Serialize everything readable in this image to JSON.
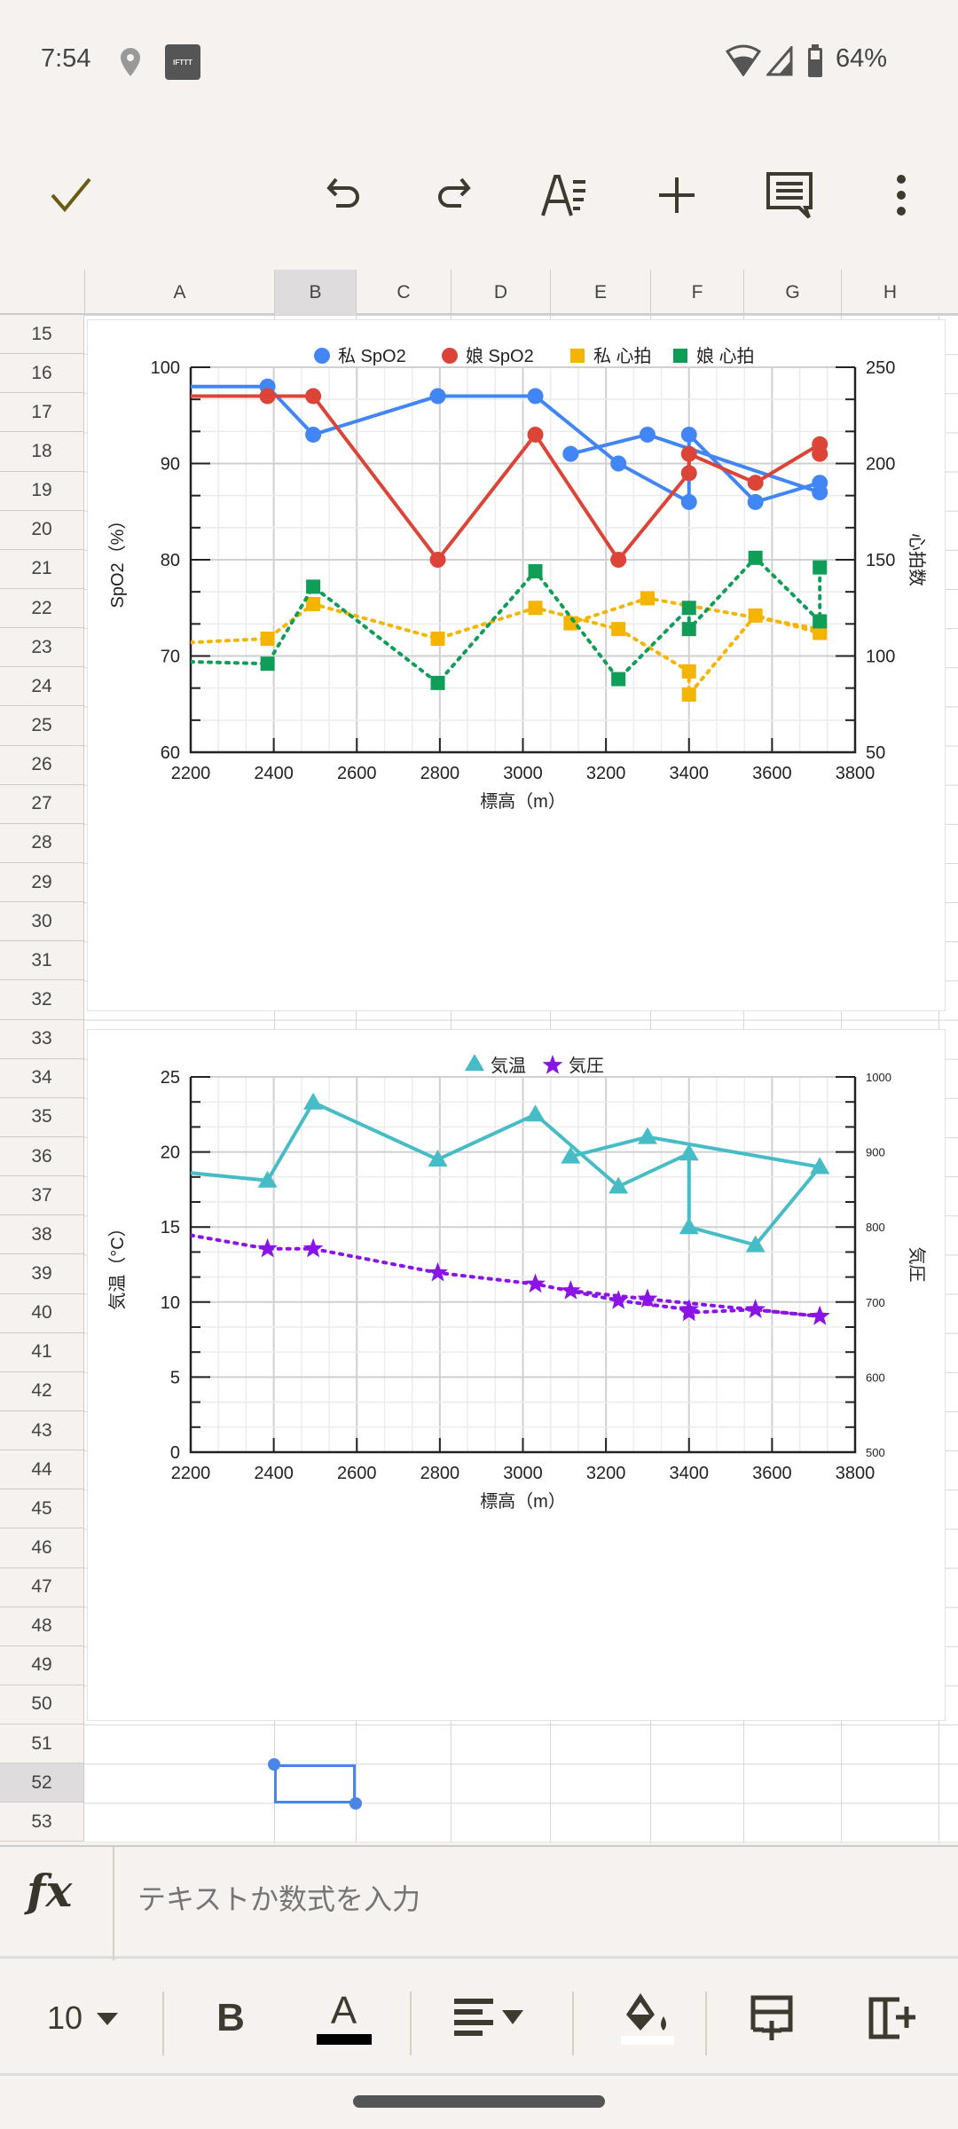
{
  "status": {
    "time": "7:54",
    "battery": "64%",
    "app_badge": "IFTTT"
  },
  "toolbar": {
    "icons": [
      "check-icon",
      "undo-icon",
      "redo-icon",
      "text-format-icon",
      "plus-icon",
      "comment-icon",
      "more-vert-icon"
    ]
  },
  "columns": [
    "A",
    "B",
    "C",
    "D",
    "E",
    "F",
    "G",
    "H"
  ],
  "selected_column": "B",
  "rows": [
    "15",
    "16",
    "17",
    "18",
    "19",
    "20",
    "21",
    "22",
    "23",
    "24",
    "25",
    "26",
    "27",
    "28",
    "29",
    "30",
    "31",
    "32",
    "33",
    "34",
    "35",
    "36",
    "37",
    "38",
    "39",
    "40",
    "41",
    "42",
    "43",
    "44",
    "45",
    "46",
    "47",
    "48",
    "49",
    "50",
    "51",
    "52",
    "53"
  ],
  "selected_row": "52",
  "formula_bar": {
    "placeholder": "テキストか数式を入力",
    "value": ""
  },
  "format_bar": {
    "font_size": "10",
    "bold": "B",
    "text_color": "A",
    "text_color_hex": "#000000",
    "fill_color_hex": "#ffffff"
  },
  "chart_data": [
    {
      "type": "line",
      "title": "",
      "xlabel": "標高（m）",
      "ylabel": "SpO2（%）",
      "y2label": "心拍数",
      "xlim": [
        2200,
        3800
      ],
      "ylim": [
        60,
        100
      ],
      "y2lim": [
        50,
        250
      ],
      "xticks": [
        "2200",
        "2400",
        "2600",
        "2800",
        "3000",
        "3200",
        "3400",
        "3600",
        "3800"
      ],
      "yticks": [
        "60",
        "70",
        "80",
        "90",
        "100"
      ],
      "y2ticks": [
        "50",
        "100",
        "150",
        "200",
        "250"
      ],
      "grid": true,
      "legend": "top",
      "x": [
        2200,
        2385,
        2495,
        2795,
        3030,
        3230,
        3400,
        3400,
        3560,
        3715,
        3715,
        3300,
        3115
      ],
      "series": [
        {
          "name": "私 SpO2",
          "axis": "left",
          "color": "#4285f4",
          "marker": "circle",
          "dotted": false,
          "values": [
            98,
            98,
            93,
            97,
            97,
            90,
            86,
            93,
            86,
            88,
            87,
            93,
            91
          ]
        },
        {
          "name": "娘 SpO2",
          "axis": "left",
          "color": "#db4437",
          "marker": "circle",
          "dotted": false,
          "values": [
            97,
            97,
            97,
            80,
            93,
            80,
            89,
            91,
            88,
            92,
            91,
            null,
            null
          ]
        },
        {
          "name": "私 心拍",
          "axis": "right",
          "color": "#f4b400",
          "marker": "square",
          "dotted": true,
          "values": [
            107,
            109,
            127,
            109,
            125,
            114,
            92,
            80,
            121,
            112,
            114,
            130,
            117
          ]
        },
        {
          "name": "娘 心拍",
          "axis": "right",
          "color": "#0f9d58",
          "marker": "square",
          "dotted": true,
          "values": [
            97,
            96,
            136,
            86,
            144,
            88,
            125,
            114,
            151,
            118,
            146,
            null,
            null
          ]
        }
      ]
    },
    {
      "type": "line",
      "title": "",
      "xlabel": "標高（m）",
      "ylabel": "気温（°C）",
      "y2label": "気圧",
      "xlim": [
        2200,
        3800
      ],
      "ylim": [
        0,
        25
      ],
      "y2lim": [
        500,
        1000
      ],
      "xticks": [
        "2200",
        "2400",
        "2600",
        "2800",
        "3000",
        "3200",
        "3400",
        "3600",
        "3800"
      ],
      "yticks": [
        "0",
        "5",
        "10",
        "15",
        "20",
        "25"
      ],
      "y2ticks": [
        "500",
        "600",
        "700",
        "800",
        "900",
        "1000"
      ],
      "grid": true,
      "legend": "top",
      "x": [
        2200,
        2385,
        2495,
        2795,
        3030,
        3230,
        3400,
        3400,
        3560,
        3715,
        3715,
        3300,
        3115
      ],
      "series": [
        {
          "name": "気温",
          "axis": "left",
          "color": "#46bdc6",
          "marker": "triangle",
          "dotted": false,
          "values": [
            18.6,
            18.1,
            23.3,
            19.5,
            22.5,
            17.7,
            19.9,
            15,
            13.8,
            19,
            19,
            21,
            19.7
          ]
        },
        {
          "name": "気圧",
          "axis": "right",
          "color": "#8a13e8",
          "marker": "star",
          "dotted": true,
          "values": [
            789,
            771,
            771,
            739,
            724,
            702,
            690,
            686,
            690,
            681,
            681,
            704,
            715
          ]
        }
      ]
    }
  ]
}
